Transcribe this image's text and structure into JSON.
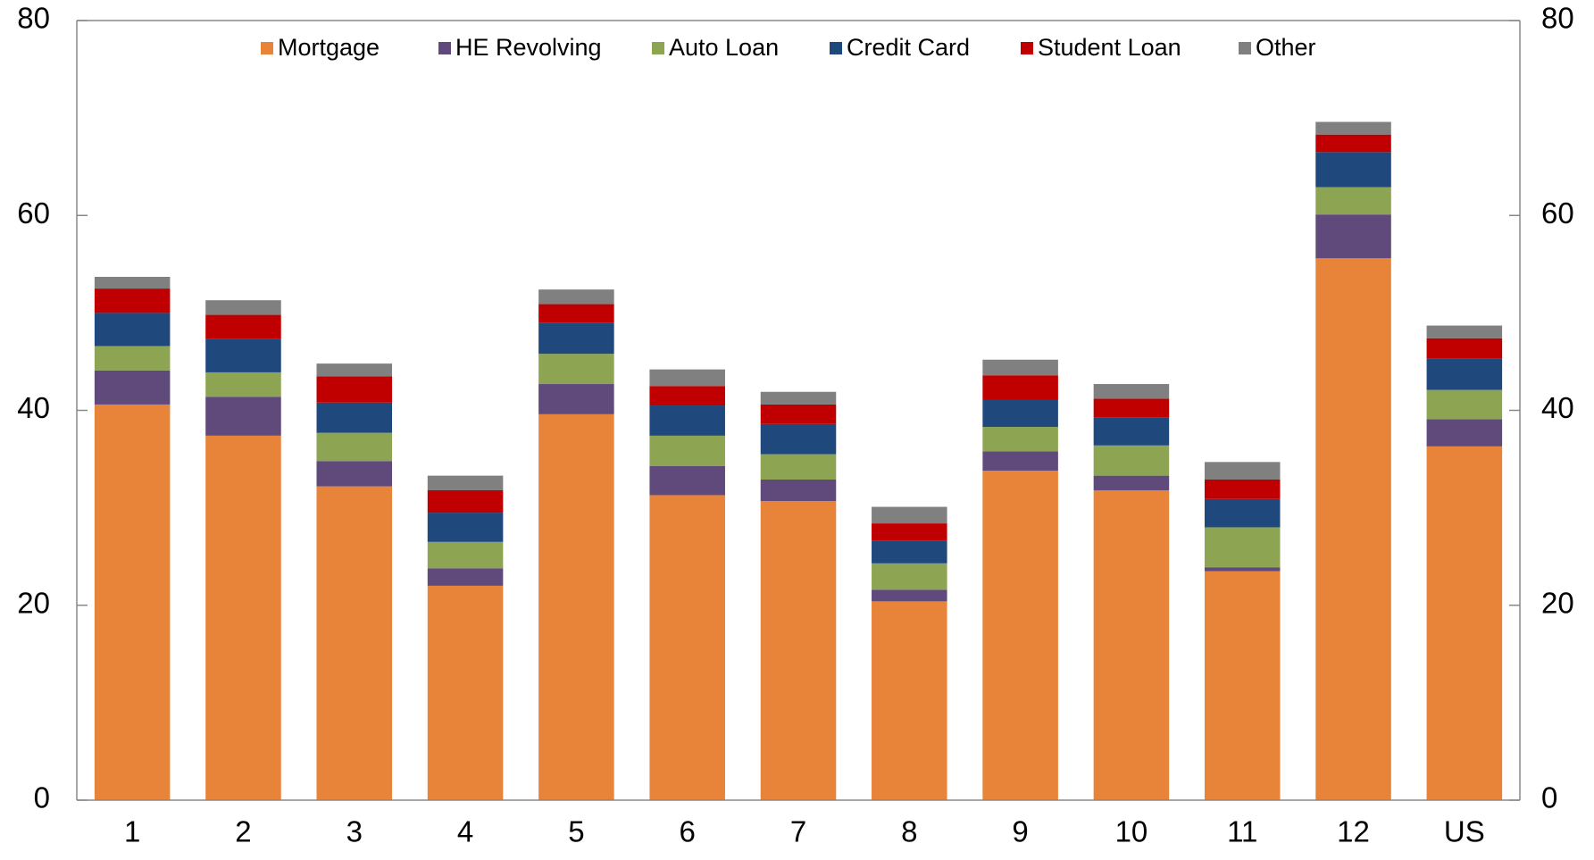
{
  "chart_data": {
    "type": "stacked_bar",
    "categories": [
      "1",
      "2",
      "3",
      "4",
      "5",
      "6",
      "7",
      "8",
      "9",
      "10",
      "11",
      "12",
      "US"
    ],
    "series": [
      {
        "name": "Mortgage",
        "color": "#e8833a",
        "values": [
          40.6,
          37.4,
          32.2,
          22.0,
          39.6,
          31.3,
          30.7,
          20.4,
          33.8,
          31.8,
          23.5,
          55.6,
          36.3
        ]
      },
      {
        "name": "HE Revolving",
        "color": "#604a7b",
        "values": [
          3.5,
          4.0,
          2.6,
          1.8,
          3.1,
          3.0,
          2.2,
          1.2,
          2.0,
          1.5,
          0.4,
          4.5,
          2.8
        ]
      },
      {
        "name": "Auto Loan",
        "color": "#8da553",
        "values": [
          2.5,
          2.5,
          2.9,
          2.7,
          3.1,
          3.1,
          2.6,
          2.7,
          2.5,
          3.1,
          4.1,
          2.8,
          3.0
        ]
      },
      {
        "name": "Credit Card",
        "color": "#1f497d",
        "values": [
          3.4,
          3.4,
          3.1,
          3.0,
          3.2,
          3.1,
          3.1,
          2.3,
          2.8,
          2.9,
          2.9,
          3.6,
          3.2
        ]
      },
      {
        "name": "Student Loan",
        "color": "#c00000",
        "values": [
          2.5,
          2.5,
          2.7,
          2.3,
          1.9,
          2.0,
          2.0,
          1.8,
          2.5,
          1.9,
          2.0,
          1.8,
          2.1
        ]
      },
      {
        "name": "Other",
        "color": "#808080",
        "values": [
          1.2,
          1.5,
          1.3,
          1.5,
          1.5,
          1.7,
          1.3,
          1.7,
          1.6,
          1.5,
          1.8,
          1.3,
          1.3
        ]
      }
    ],
    "ylim": [
      0,
      80
    ],
    "yticks": [
      0,
      20,
      40,
      60,
      80
    ],
    "y2lim": [
      0,
      80
    ],
    "y2ticks": [
      0,
      20,
      40,
      60,
      80
    ],
    "legend": "top"
  }
}
